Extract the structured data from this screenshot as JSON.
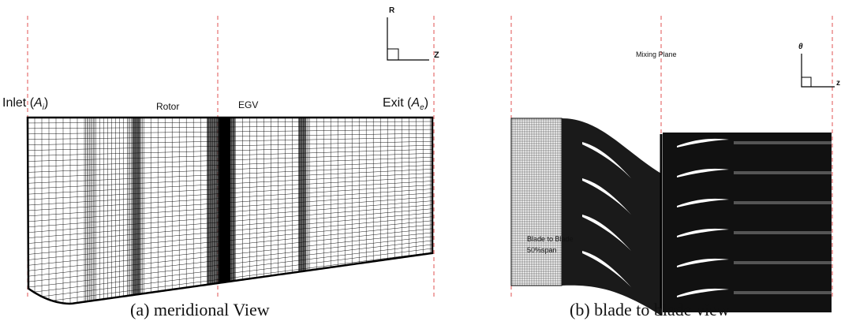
{
  "panel_a": {
    "axis_r": "R",
    "axis_z": "Z",
    "inlet_label": "Inlet (",
    "inlet_sym": "A",
    "inlet_sub": "i",
    "inlet_close": ")",
    "rotor_label": "Rotor",
    "egv_label": "EGV",
    "exit_label": "Exit (",
    "exit_sym": "A",
    "exit_sub": "e",
    "exit_close": ")",
    "caption": "(a)  meridional View"
  },
  "panel_b": {
    "axis_theta": "θ",
    "axis_z": "z",
    "mixing_plane_label": "Mixing Plane",
    "blade_to_blade_label": "Blade to Blade",
    "span_label": "50%span",
    "caption": "(b) blade to blade view"
  },
  "colors": {
    "mesh": "#000000",
    "dashed": "#e05050",
    "background": "#ffffff"
  }
}
